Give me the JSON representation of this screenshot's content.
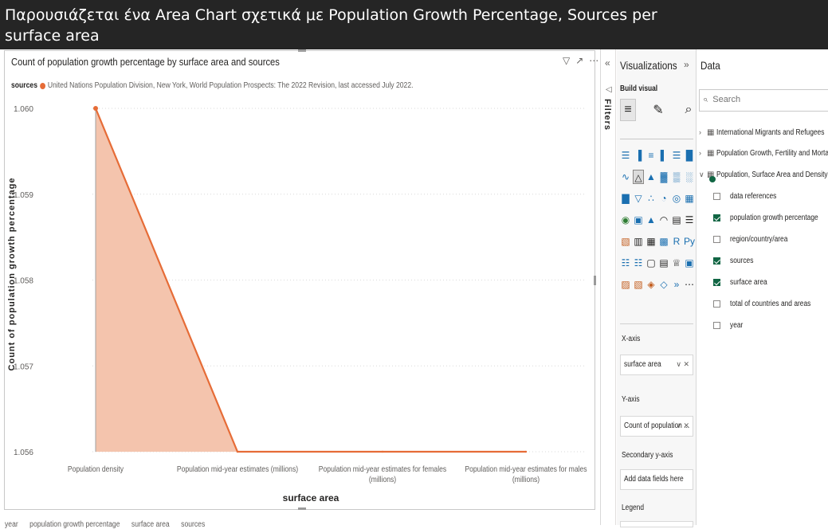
{
  "banner": {
    "line1": "Παρουσιάζεται ένα Area Chart σχετικά με Population Growth Percentage, Sources per",
    "line2": "surface area"
  },
  "visual": {
    "title": "Count of population growth percentage by surface area and sources",
    "legend_title": "sources",
    "legend_entry": "United Nations Population Division, New York, World Population Prospects: The 2022 Revision, last accessed July 2022.",
    "footer": [
      "year",
      "population growth percentage",
      "surface area",
      "sources"
    ]
  },
  "chart_data": {
    "type": "area",
    "categories": [
      "Population density",
      "Population mid-year estimates (millions)",
      "Population mid-year estimates for females (millions)",
      "Population mid-year estimates for males (millions)"
    ],
    "series": [
      {
        "name": "United Nations Population Division, New York, World Population Prospects: The 2022 Revision, last accessed July 2022.",
        "values": [
          1.06,
          1.056,
          1.056,
          1.056
        ]
      }
    ],
    "title": "Count of population growth percentage by surface area and sources",
    "xlabel": "surface area",
    "ylabel": "Count of population growth percentage",
    "ylim": [
      1.056,
      1.06
    ],
    "yticks": [
      "1.056",
      "1.057",
      "1.058",
      "1.059",
      "1.060"
    ],
    "grid": true,
    "legend": "top-left",
    "colors": {
      "line": "#e66c37",
      "fill": "#f4c4ad"
    }
  },
  "filters": {
    "label": "Filters"
  },
  "visualizations": {
    "title": "Visualizations",
    "build_visual": "Build visual",
    "wells": {
      "x_axis_label": "X-axis",
      "x_axis_value": "surface area",
      "y_axis_label": "Y-axis",
      "y_axis_value": "Count of population ...",
      "secondary_label": "Secondary y-axis",
      "secondary_placeholder": "Add data fields here",
      "legend_label": "Legend"
    }
  },
  "data_pane": {
    "title": "Data",
    "search_placeholder": "Search",
    "tables": [
      {
        "name": "International Migrants and Refugees",
        "expanded": false
      },
      {
        "name": "Population Growth, Fertility and Mortality Indicators",
        "expanded": false
      },
      {
        "name": "Population, Surface Area and Density",
        "expanded": true
      }
    ],
    "fields": [
      {
        "name": "data references",
        "checked": false
      },
      {
        "name": "population growth percentage",
        "checked": true
      },
      {
        "name": "region/country/area",
        "checked": false
      },
      {
        "name": "sources",
        "checked": true
      },
      {
        "name": "surface area",
        "checked": true
      },
      {
        "name": "total of countries and areas",
        "checked": false
      },
      {
        "name": "year",
        "checked": false
      }
    ]
  }
}
